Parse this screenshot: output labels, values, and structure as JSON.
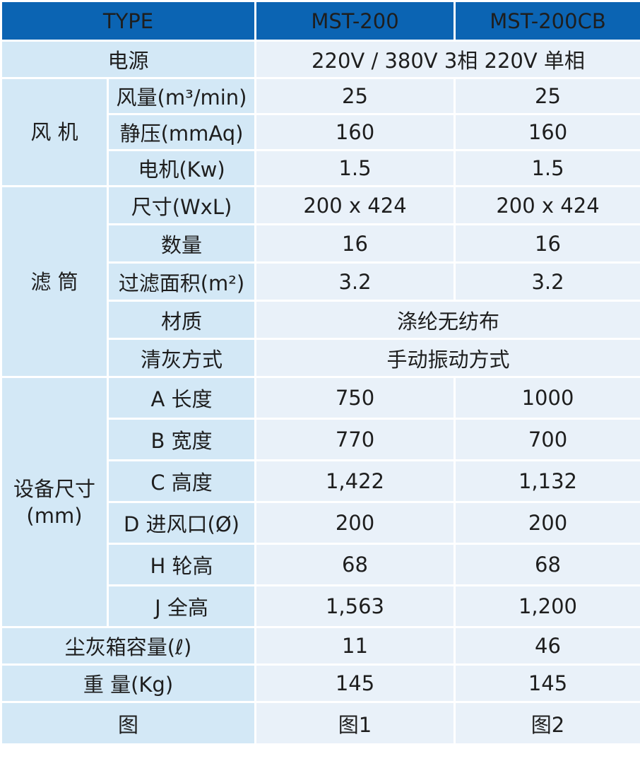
{
  "header": {
    "type_label": "TYPE",
    "models": [
      "MST-200",
      "MST-200CB"
    ]
  },
  "power": {
    "label": "电源",
    "value": "220V / 380V 3相 220V 单相"
  },
  "fan": {
    "group": "风 机",
    "rows": [
      {
        "label": "风量(m³/min)",
        "v1": "25",
        "v2": "25"
      },
      {
        "label": "静压(mmAq)",
        "v1": "160",
        "v2": "160"
      },
      {
        "label": "电机(Kw)",
        "v1": "1.5",
        "v2": "1.5"
      }
    ]
  },
  "filter": {
    "group": "滤 筒",
    "rows": [
      {
        "label": "尺寸(WxL)",
        "v1": "200 x 424",
        "v2": "200 x 424"
      },
      {
        "label": "数量",
        "v1": "16",
        "v2": "16"
      },
      {
        "label": "过滤面积(m²)",
        "v1": "3.2",
        "v2": "3.2"
      }
    ],
    "material": {
      "label": "材质",
      "value": "涤纶无纺布"
    },
    "cleaning": {
      "label": "清灰方式",
      "value": "手动振动方式"
    }
  },
  "dimensions": {
    "group_line1": "设备尺寸",
    "group_line2": "(mm)",
    "rows": [
      {
        "label": "A 长度",
        "v1": "750",
        "v2": "1000"
      },
      {
        "label": "B 宽度",
        "v1": "770",
        "v2": "700"
      },
      {
        "label": "C 高度",
        "v1": "1,422",
        "v2": "1,132"
      },
      {
        "label": "D 进风口(Ø)",
        "v1": "200",
        "v2": "200"
      },
      {
        "label": "H 轮高",
        "v1": "68",
        "v2": "68"
      },
      {
        "label": "J 全高",
        "v1": "1,563",
        "v2": "1,200"
      }
    ]
  },
  "dust_bin": {
    "label": "尘灰箱容量(ℓ)",
    "v1": "11",
    "v2": "46"
  },
  "weight": {
    "label": "重 量(Kg)",
    "v1": "145",
    "v2": "145"
  },
  "figure": {
    "label": "图",
    "v1": "图1",
    "v2": "图2"
  }
}
